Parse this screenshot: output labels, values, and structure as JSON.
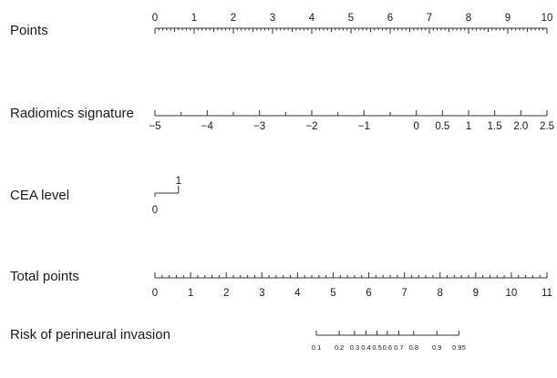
{
  "chart_data": {
    "type": "nomogram",
    "rows": [
      {
        "label": "Points",
        "ticks": [
          "0",
          "1",
          "2",
          "3",
          "4",
          "5",
          "6",
          "7",
          "8",
          "9",
          "10"
        ],
        "range": [
          0,
          10
        ],
        "minor_step": 0.1
      },
      {
        "label": "Radiomics signature",
        "ticks": [
          "−5",
          "−4",
          "−3",
          "−2",
          "−1",
          "0",
          "0.5",
          "1",
          "1.5",
          "2.0",
          "2.5"
        ],
        "values": [
          -5,
          -4,
          -3,
          -2,
          -1,
          0,
          0.5,
          1,
          1.5,
          2.0,
          2.5
        ],
        "minor_values": [
          -4.5,
          -3.5,
          -2.5,
          -1.5,
          -0.5
        ],
        "points_at_min": 0,
        "points_at_max": 10
      },
      {
        "label": "CEA level",
        "categories": [
          "0",
          "1"
        ],
        "points": [
          0,
          0.6
        ]
      },
      {
        "label": "Total points",
        "ticks": [
          "0",
          "1",
          "2",
          "3",
          "4",
          "5",
          "6",
          "7",
          "8",
          "9",
          "10",
          "11"
        ],
        "range": [
          0,
          11
        ],
        "minor_step": 0.2
      },
      {
        "label": "Risk of perineural invasion",
        "ticks": [
          "0.1",
          "0.2",
          "0.3",
          "0.4",
          "0.5",
          "0.6",
          "0.7",
          "0.8",
          "0.9",
          "0.95"
        ],
        "values": [
          0.1,
          0.2,
          0.3,
          0.4,
          0.5,
          0.6,
          0.7,
          0.8,
          0.9,
          0.95
        ],
        "total_points_at": [
          4.53,
          5.17,
          5.6,
          5.92,
          6.23,
          6.52,
          6.84,
          7.26,
          7.91,
          8.53
        ]
      }
    ]
  }
}
